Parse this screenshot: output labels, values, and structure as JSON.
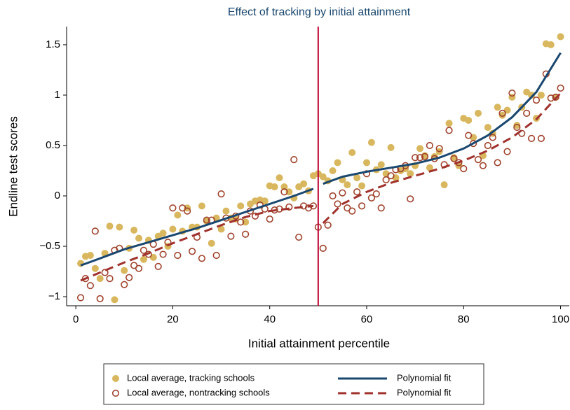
{
  "chart_data": {
    "type": "scatter",
    "title": "Effect of tracking by initial attainment",
    "x_label": "Initial attainment percentile",
    "y_label": "Endline test scores",
    "xlim": [
      -1.9,
      101.8
    ],
    "ylim": [
      -1.09,
      1.68
    ],
    "xticks": [
      0,
      20,
      40,
      60,
      80,
      100
    ],
    "yticks": [
      {
        "value": -1,
        "label": "−1"
      },
      {
        "value": -0.5,
        "label": "−0.5"
      },
      0,
      0.5,
      1,
      1.5
    ],
    "grid": false,
    "vline": {
      "x": 50,
      "color": "#c10534"
    },
    "legend": "below",
    "series": [
      {
        "name": "Local average, tracking schools",
        "mode": "markers",
        "marker": "filled",
        "color": "#d8b75e",
        "x": [
          1,
          2,
          3,
          4,
          5,
          6,
          7,
          8,
          9,
          10,
          11,
          12,
          13,
          14,
          15,
          16,
          17,
          18,
          19,
          20,
          21,
          22,
          23,
          24,
          25,
          26,
          27,
          28,
          29,
          30,
          31,
          32,
          33,
          34,
          35,
          36,
          37,
          38,
          39,
          40,
          41,
          42,
          43,
          44,
          45,
          46,
          47,
          48,
          49,
          50,
          51,
          52,
          53,
          54,
          55,
          56,
          57,
          58,
          59,
          60,
          61,
          62,
          63,
          64,
          65,
          66,
          67,
          68,
          69,
          70,
          71,
          72,
          73,
          74,
          75,
          76,
          77,
          78,
          79,
          80,
          81,
          82,
          83,
          84,
          85,
          86,
          87,
          88,
          89,
          90,
          91,
          92,
          93,
          94,
          95,
          96,
          97,
          98,
          99,
          100
        ],
        "values": [
          -0.67,
          -0.6,
          -0.59,
          -0.72,
          -0.82,
          -0.57,
          -0.3,
          -1.03,
          -0.31,
          -0.74,
          -0.52,
          -0.34,
          -0.42,
          -0.63,
          -0.44,
          -0.61,
          -0.4,
          -0.37,
          -0.5,
          -0.33,
          -0.19,
          -0.35,
          -0.12,
          -0.31,
          -0.31,
          -0.1,
          -0.25,
          -0.47,
          -0.22,
          -0.33,
          -0.15,
          -0.22,
          -0.23,
          -0.1,
          -0.26,
          -0.08,
          -0.05,
          -0.04,
          -0.05,
          0.1,
          0.09,
          0.18,
          0.09,
          0.04,
          -0.02,
          0.09,
          0.12,
          0.05,
          0.2,
          0.22,
          0.19,
          0.15,
          0.25,
          0.33,
          0.16,
          0.11,
          0.43,
          0.18,
          0.1,
          0.33,
          0.53,
          0.26,
          0.31,
          0.22,
          0.48,
          0.18,
          0.25,
          0.27,
          0.22,
          0.3,
          0.47,
          0.4,
          0.28,
          0.39,
          0.44,
          0.11,
          0.72,
          0.38,
          0.3,
          0.77,
          0.75,
          0.58,
          0.82,
          0.4,
          0.68,
          0.62,
          0.88,
          0.8,
          0.85,
          0.98,
          0.7,
          0.88,
          1.03,
          1.0,
          0.77,
          1.0,
          1.51,
          1.5,
          0.98,
          1.58
        ]
      },
      {
        "name": "Local average, nontracking schools",
        "mode": "markers",
        "marker": "hollow",
        "color": "#a0432d",
        "x": [
          1,
          2,
          3,
          4,
          5,
          6,
          7,
          8,
          9,
          10,
          11,
          12,
          13,
          14,
          15,
          16,
          17,
          18,
          19,
          20,
          21,
          22,
          23,
          24,
          25,
          26,
          27,
          28,
          29,
          30,
          31,
          32,
          33,
          34,
          35,
          36,
          37,
          38,
          39,
          40,
          41,
          42,
          43,
          44,
          45,
          46,
          47,
          48,
          49,
          50,
          51,
          52,
          53,
          54,
          55,
          56,
          57,
          58,
          59,
          60,
          61,
          62,
          63,
          64,
          65,
          66,
          67,
          68,
          69,
          70,
          71,
          72,
          73,
          74,
          75,
          76,
          77,
          78,
          79,
          80,
          81,
          82,
          83,
          84,
          85,
          86,
          87,
          88,
          89,
          90,
          91,
          92,
          93,
          94,
          95,
          96,
          97,
          98,
          99,
          100
        ],
        "values": [
          -1.01,
          -0.82,
          -0.89,
          -0.35,
          -1.02,
          -0.76,
          -0.82,
          -0.54,
          -0.52,
          -0.88,
          -0.81,
          -0.69,
          -0.72,
          -0.54,
          -0.58,
          -0.48,
          -0.7,
          -0.58,
          -0.46,
          -0.12,
          -0.59,
          -0.12,
          -0.15,
          -0.55,
          -0.41,
          -0.62,
          -0.24,
          -0.24,
          -0.59,
          0.02,
          -0.22,
          -0.4,
          -0.2,
          -0.26,
          -0.38,
          -0.15,
          -0.2,
          -0.09,
          -0.13,
          -0.23,
          -0.14,
          -0.13,
          0.04,
          -0.11,
          0.36,
          -0.41,
          -0.1,
          -0.12,
          -0.1,
          -0.31,
          -0.52,
          -0.29,
          0.0,
          -0.08,
          0.03,
          -0.12,
          -0.15,
          0.04,
          -0.1,
          0.22,
          -0.02,
          0.02,
          -0.12,
          0.16,
          0.2,
          0.26,
          0.27,
          0.3,
          -0.03,
          0.38,
          0.38,
          0.39,
          0.5,
          0.37,
          0.47,
          0.31,
          0.65,
          0.37,
          0.33,
          0.27,
          0.6,
          0.52,
          0.36,
          0.3,
          0.5,
          0.58,
          0.33,
          0.82,
          0.44,
          1.02,
          0.68,
          0.62,
          0.82,
          0.57,
          0.95,
          0.57,
          1.21,
          0.97,
          0.98,
          1.07
        ]
      },
      {
        "name": "Polynomial fit",
        "mode": "lines",
        "line_style": "solid",
        "color": "#1a476f",
        "x": [
          1,
          5,
          10,
          15,
          20,
          25,
          30,
          35,
          40,
          45,
          49,
          50,
          51,
          55,
          60,
          65,
          70,
          75,
          80,
          85,
          90,
          95,
          100
        ],
        "values": [
          -0.69,
          -0.62,
          -0.53,
          -0.46,
          -0.39,
          -0.32,
          -0.24,
          -0.16,
          -0.08,
          0.0,
          0.07,
          null,
          0.12,
          0.19,
          0.24,
          0.28,
          0.32,
          0.38,
          0.47,
          0.6,
          0.78,
          1.03,
          1.42
        ]
      },
      {
        "name": "Polynomial fit",
        "mode": "lines",
        "line_style": "dashed",
        "color": "#a0322d",
        "x": [
          1,
          5,
          10,
          15,
          20,
          25,
          30,
          35,
          40,
          45,
          49,
          50,
          51,
          55,
          60,
          65,
          70,
          75,
          80,
          85,
          90,
          95,
          100
        ],
        "values": [
          -0.84,
          -0.76,
          -0.66,
          -0.57,
          -0.47,
          -0.38,
          -0.29,
          -0.21,
          -0.15,
          -0.12,
          -0.1,
          null,
          -0.27,
          -0.08,
          0.04,
          0.13,
          0.2,
          0.27,
          0.35,
          0.45,
          0.58,
          0.76,
          1.02
        ]
      }
    ]
  }
}
